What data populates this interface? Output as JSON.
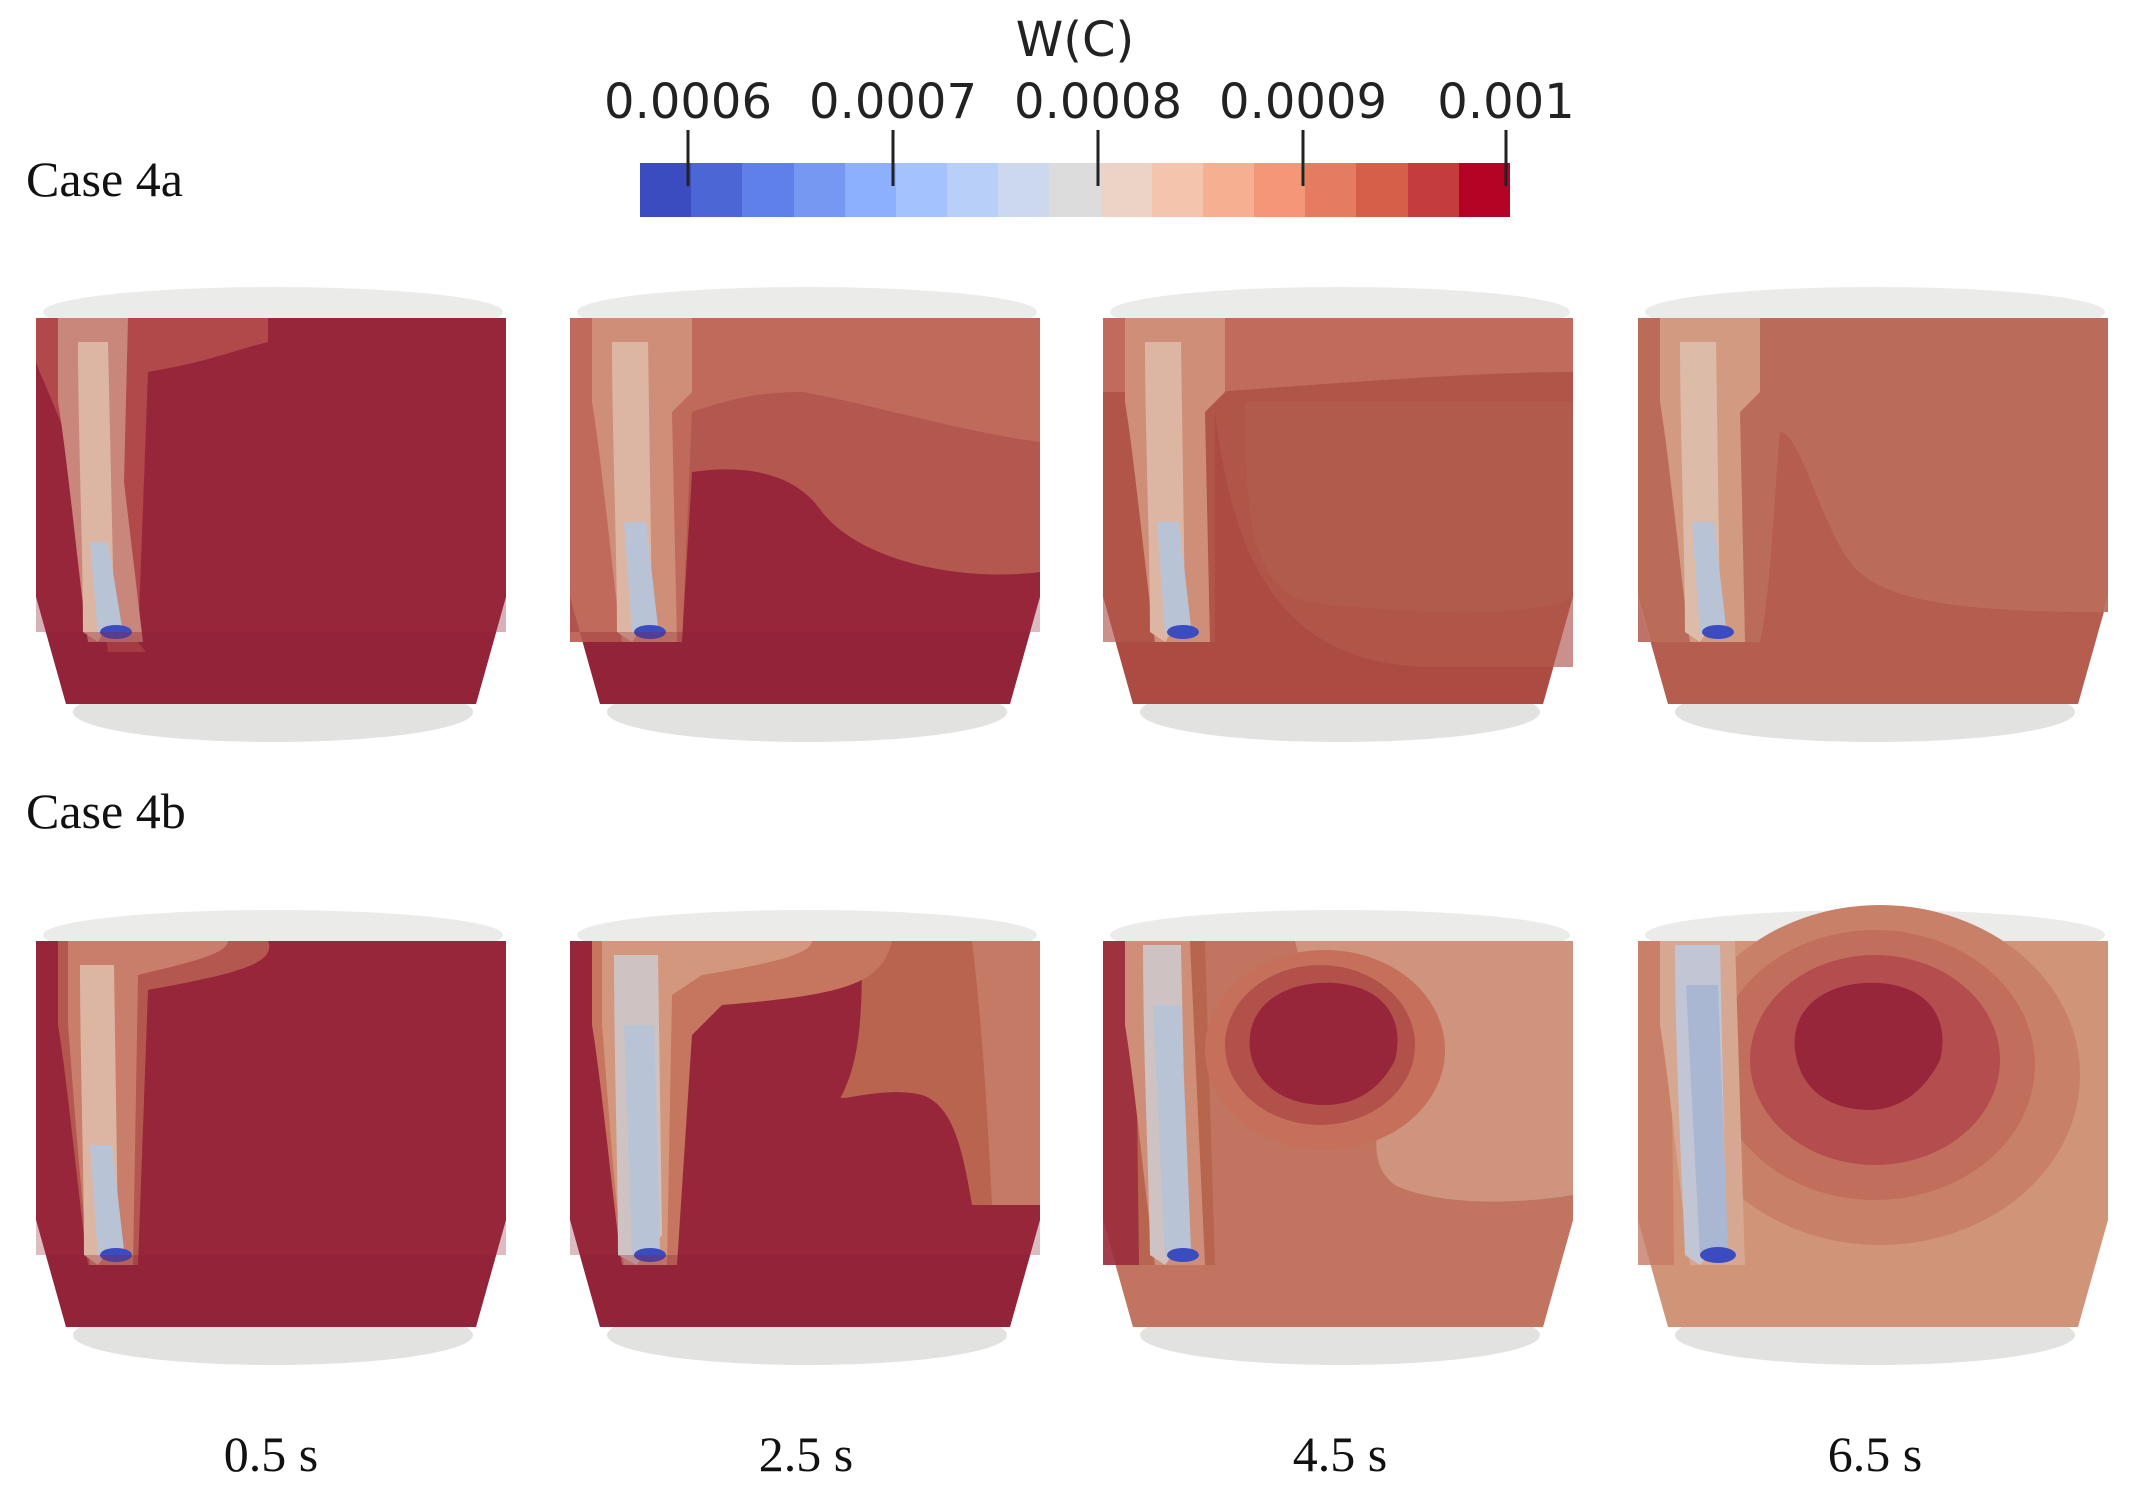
{
  "colorbar": {
    "title": "W(C)",
    "ticks": [
      "0.0006",
      "0.0007",
      "0.0008",
      "0.0009",
      "0.001"
    ],
    "colors": [
      "#3b4cc0",
      "#4c66d6",
      "#5f80e8",
      "#7698f3",
      "#8caffe",
      "#a3c2fe",
      "#b8d0f9",
      "#cbd8ee",
      "#dddcdc",
      "#ecd3c5",
      "#f5c4ac",
      "#f7af91",
      "#f39778",
      "#e57c60",
      "#d65f4a",
      "#c43c3c",
      "#b40426"
    ]
  },
  "cases": [
    {
      "label": "Case 4a"
    },
    {
      "label": "Case 4b"
    }
  ],
  "times": [
    "0.5 s",
    "2.5 s",
    "4.5 s",
    "6.5 s"
  ],
  "field_colors": {
    "deep_red": "#97263b",
    "mid_red": "#b44e4e",
    "light_red": "#c46a5c",
    "salmon": "#d08b72",
    "pale": "#dcb6a2",
    "grey_blue": "#b9c3d6",
    "blue_core": "#3b4cc0",
    "shell": "#e7e7e5"
  }
}
